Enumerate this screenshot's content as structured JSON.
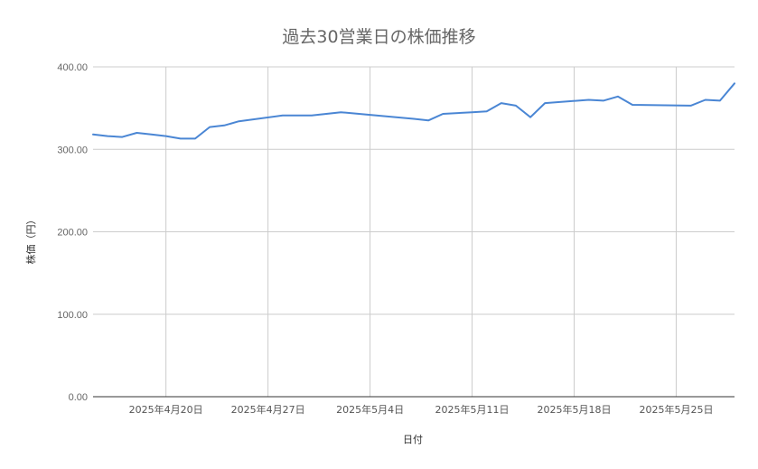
{
  "chart_data": {
    "type": "line",
    "title": "過去30営業日の株価推移",
    "xlabel": "日付",
    "ylabel": "株価（円）",
    "ylim": [
      0,
      400
    ],
    "y_ticks": [
      "0.00",
      "100.00",
      "200.00",
      "300.00",
      "400.00"
    ],
    "y_tick_values": [
      0,
      100,
      200,
      300,
      400
    ],
    "x_tick_labels": [
      "2025年4月20日",
      "2025年4月27日",
      "2025年5月4日",
      "2025年5月11日",
      "2025年5月18日",
      "2025年5月25日"
    ],
    "x_tick_dates": [
      "2025-04-20",
      "2025-04-27",
      "2025-05-04",
      "2025-05-11",
      "2025-05-18",
      "2025-05-25"
    ],
    "xlim": [
      "2025-04-15",
      "2025-05-29"
    ],
    "grid": true,
    "line_color": "#4a86d4",
    "series": [
      {
        "points": [
          [
            "2025-04-15",
            318
          ],
          [
            "2025-04-16",
            316
          ],
          [
            "2025-04-17",
            315
          ],
          [
            "2025-04-18",
            320
          ],
          [
            "2025-04-19",
            318
          ],
          [
            "2025-04-20",
            316
          ],
          [
            "2025-04-21",
            313
          ],
          [
            "2025-04-22",
            313
          ],
          [
            "2025-04-23",
            327
          ],
          [
            "2025-04-24",
            329
          ],
          [
            "2025-04-25",
            334
          ],
          [
            "2025-04-28",
            341
          ],
          [
            "2025-04-30",
            341
          ],
          [
            "2025-05-02",
            345
          ],
          [
            "2025-05-07",
            337
          ],
          [
            "2025-05-08",
            335
          ],
          [
            "2025-05-09",
            343
          ],
          [
            "2025-05-11",
            345
          ],
          [
            "2025-05-12",
            346
          ],
          [
            "2025-05-13",
            356
          ],
          [
            "2025-05-14",
            353
          ],
          [
            "2025-05-15",
            339
          ],
          [
            "2025-05-16",
            356
          ],
          [
            "2025-05-19",
            360
          ],
          [
            "2025-05-20",
            359
          ],
          [
            "2025-05-21",
            364
          ],
          [
            "2025-05-22",
            354
          ],
          [
            "2025-05-26",
            353
          ],
          [
            "2025-05-27",
            360
          ],
          [
            "2025-05-28",
            359
          ],
          [
            "2025-05-29",
            380
          ]
        ]
      }
    ]
  }
}
